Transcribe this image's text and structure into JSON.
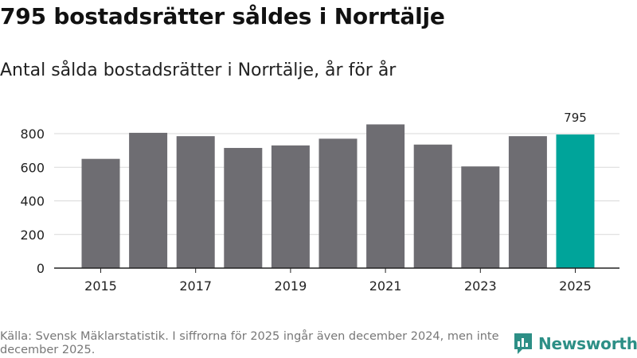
{
  "title": "795 bostadsrätter såldes i Norrtälje",
  "subtitle": "Antal sålda bostadsrätter i Norrtälje, år för år",
  "source": "Källa: Svensk Mäklarstatistik. I siffrorna för 2025 ingår även december 2024, men inte december 2025.",
  "logo": {
    "text": "Newsworthy",
    "icon": "bar-chart-icon"
  },
  "colors": {
    "bar": "#6e6d72",
    "highlight": "#00a49a",
    "grid": "#d9d9d9",
    "axis": "#222222",
    "logo": "#2d8f86"
  },
  "chart_data": {
    "type": "bar",
    "title": "Antal sålda bostadsrätter i Norrtälje, år för år",
    "xlabel": "",
    "ylabel": "",
    "categories": [
      "2015",
      "2016",
      "2017",
      "2018",
      "2019",
      "2020",
      "2021",
      "2022",
      "2023",
      "2024",
      "2025"
    ],
    "values": [
      650,
      805,
      785,
      715,
      730,
      770,
      855,
      735,
      605,
      785,
      795
    ],
    "x_tick_labels": [
      "2015",
      "2017",
      "2019",
      "2021",
      "2023",
      "2025"
    ],
    "y_ticks": [
      0,
      200,
      400,
      600,
      800
    ],
    "ylim": [
      0,
      900
    ],
    "grid": true,
    "highlight_category": "2025",
    "data_labels": [
      {
        "category": "2025",
        "text": "795"
      }
    ]
  }
}
